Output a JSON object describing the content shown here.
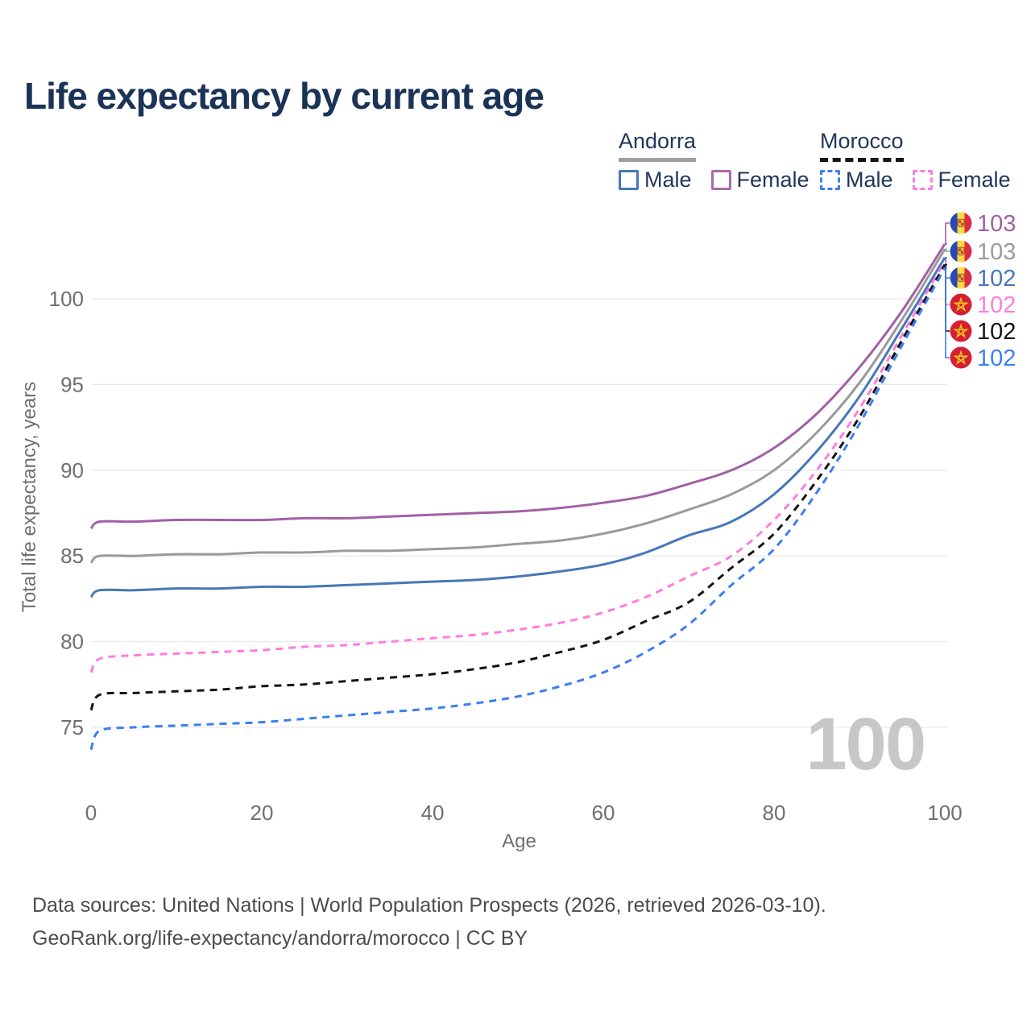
{
  "title": "Life expectancy by current age",
  "legend": {
    "groups": [
      {
        "country": "Andorra",
        "line_style": "solid",
        "line_color": "#9e9e9e",
        "items": [
          {
            "label": "Male",
            "color": "#4677b8",
            "dashed": false
          },
          {
            "label": "Female",
            "color": "#a96bab",
            "dashed": false
          }
        ]
      },
      {
        "country": "Morocco",
        "line_style": "dashed",
        "line_color": "#141414",
        "items": [
          {
            "label": "Male",
            "color": "#3b7ef2",
            "dashed": true
          },
          {
            "label": "Female",
            "color": "#ff7ce0",
            "dashed": true
          }
        ]
      }
    ]
  },
  "chart_data": {
    "type": "line",
    "title": "Life expectancy by current age",
    "xlabel": "Age",
    "ylabel": "Total life expectancy, years",
    "x_ticks": [
      0,
      20,
      40,
      60,
      80,
      100
    ],
    "y_ticks": [
      75,
      80,
      85,
      90,
      95,
      100
    ],
    "xlim": [
      0,
      100
    ],
    "ylim": [
      73,
      104
    ],
    "grid": "horizontal-only",
    "age_counter": "100",
    "ages": [
      0,
      1,
      5,
      10,
      15,
      20,
      25,
      30,
      35,
      40,
      45,
      50,
      55,
      60,
      65,
      70,
      75,
      80,
      85,
      90,
      95,
      100
    ],
    "series": [
      {
        "name": "Andorra Female",
        "country": "Andorra",
        "sex": "female",
        "flag": "andorra",
        "color": "#a160a6",
        "dashed": false,
        "end_label": "103",
        "values": [
          86.6,
          87.0,
          87.0,
          87.1,
          87.1,
          87.1,
          87.2,
          87.2,
          87.3,
          87.4,
          87.5,
          87.6,
          87.8,
          88.1,
          88.5,
          89.2,
          90.0,
          91.3,
          93.3,
          96.0,
          99.3,
          103.2
        ]
      },
      {
        "name": "Andorra Both sexes",
        "country": "Andorra",
        "sex": "all",
        "flag": "andorra",
        "color": "#9a9a9a",
        "dashed": false,
        "end_label": "103",
        "values": [
          84.6,
          85.0,
          85.0,
          85.1,
          85.1,
          85.2,
          85.2,
          85.3,
          85.3,
          85.4,
          85.5,
          85.7,
          85.9,
          86.3,
          86.9,
          87.7,
          88.6,
          90.0,
          92.2,
          95.1,
          98.8,
          102.9
        ]
      },
      {
        "name": "Andorra Male",
        "country": "Andorra",
        "sex": "male",
        "flag": "andorra",
        "color": "#4677b8",
        "dashed": false,
        "end_label": "102",
        "values": [
          82.6,
          83.0,
          83.0,
          83.1,
          83.1,
          83.2,
          83.2,
          83.3,
          83.4,
          83.5,
          83.6,
          83.8,
          84.1,
          84.5,
          85.2,
          86.2,
          87.0,
          88.6,
          91.1,
          94.3,
          98.3,
          102.4
        ]
      },
      {
        "name": "Morocco Female",
        "country": "Morocco",
        "sex": "female",
        "flag": "morocco",
        "color": "#ff7ce0",
        "dashed": true,
        "end_label": "102",
        "values": [
          78.2,
          79.0,
          79.2,
          79.3,
          79.4,
          79.5,
          79.7,
          79.8,
          80.0,
          80.2,
          80.4,
          80.7,
          81.1,
          81.7,
          82.6,
          83.8,
          85.0,
          87.1,
          90.0,
          93.6,
          97.9,
          102.2
        ]
      },
      {
        "name": "Morocco Both sexes",
        "country": "Morocco",
        "sex": "all",
        "flag": "morocco",
        "color": "#141414",
        "dashed": true,
        "end_label": "102",
        "values": [
          76.0,
          76.9,
          77.0,
          77.1,
          77.2,
          77.4,
          77.5,
          77.7,
          77.9,
          78.1,
          78.4,
          78.8,
          79.4,
          80.1,
          81.2,
          82.3,
          84.3,
          86.3,
          89.4,
          93.1,
          97.6,
          102.0
        ]
      },
      {
        "name": "Morocco Male",
        "country": "Morocco",
        "sex": "male",
        "flag": "morocco",
        "color": "#3b7ef2",
        "dashed": true,
        "end_label": "102",
        "values": [
          73.7,
          74.8,
          75.0,
          75.1,
          75.2,
          75.3,
          75.5,
          75.7,
          75.9,
          76.1,
          76.4,
          76.8,
          77.4,
          78.2,
          79.4,
          81.0,
          83.3,
          85.4,
          88.7,
          92.7,
          97.3,
          101.8
        ]
      }
    ]
  },
  "footer": {
    "lines": [
      "Data sources: United Nations | World Population Prospects (2026, retrieved 2026-03-10).",
      "GeoRank.org/life-expectancy/andorra/morocco | CC BY"
    ]
  }
}
